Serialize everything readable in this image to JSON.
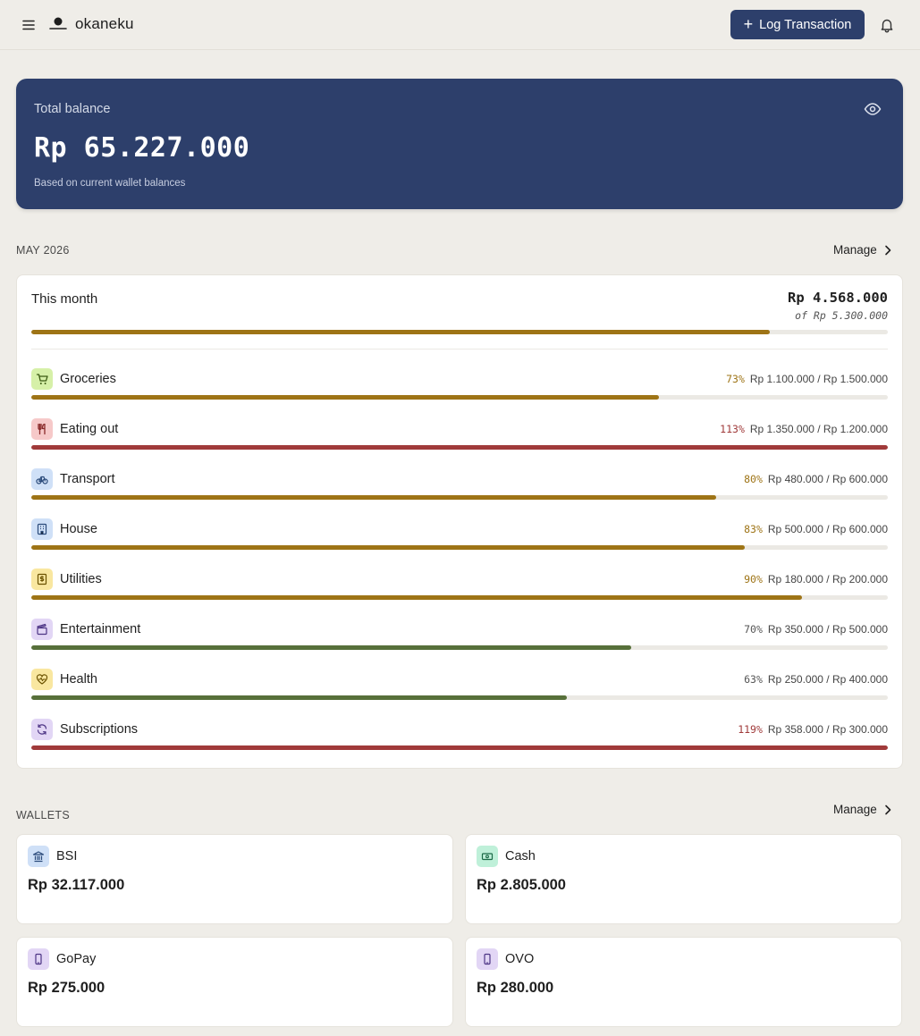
{
  "header": {
    "brand": "okaneku",
    "log_button": "Log Transaction",
    "icons": {
      "menu": "hamburger-icon",
      "logo": "logo-mark-icon",
      "notification": "bell-icon"
    }
  },
  "balance": {
    "label": "Total balance",
    "value": "Rp 65.227.000",
    "note": "Based on current wallet balances",
    "toggle_icon": "eye-icon"
  },
  "budget": {
    "section_title": "MAY 2026",
    "manage_label": "Manage",
    "this_month_label": "This month",
    "spent": "Rp 4.568.000",
    "limit": "of Rp 5.300.000",
    "progress": 0.862,
    "colors": {
      "warn": "#9e7416",
      "over": "#a03a3a",
      "ok": "#57703a",
      "track": "#ebe9e4"
    },
    "categories": [
      {
        "name": "Groceries",
        "percent": "73%",
        "amount": "Rp 1.100.000 / Rp 1.500.000",
        "progress": 0.733,
        "status": "warn",
        "icon": "cart-icon",
        "icon_bg": "#d6f0a8"
      },
      {
        "name": "Eating out",
        "percent": "113%",
        "amount": "Rp 1.350.000 / Rp 1.200.000",
        "progress": 1.0,
        "status": "over",
        "icon": "utensils-icon",
        "icon_bg": "#f6c9c9"
      },
      {
        "name": "Transport",
        "percent": "80%",
        "amount": "Rp 480.000 / Rp 600.000",
        "progress": 0.8,
        "status": "warn",
        "icon": "bicycle-icon",
        "icon_bg": "#cfe0f7"
      },
      {
        "name": "House",
        "percent": "83%",
        "amount": "Rp 500.000 / Rp 600.000",
        "progress": 0.833,
        "status": "warn",
        "icon": "building-icon",
        "icon_bg": "#cfe0f7"
      },
      {
        "name": "Utilities",
        "percent": "90%",
        "amount": "Rp 180.000 / Rp 200.000",
        "progress": 0.9,
        "status": "warn",
        "icon": "receipt-icon",
        "icon_bg": "#f9e7a0"
      },
      {
        "name": "Entertainment",
        "percent": "70%",
        "amount": "Rp 350.000 / Rp 500.000",
        "progress": 0.7,
        "status": "ok",
        "icon": "clapper-icon",
        "icon_bg": "#e2d6f5"
      },
      {
        "name": "Health",
        "percent": "63%",
        "amount": "Rp 250.000 / Rp 400.000",
        "progress": 0.625,
        "status": "ok",
        "icon": "heart-pulse-icon",
        "icon_bg": "#f9e7a0"
      },
      {
        "name": "Subscriptions",
        "percent": "119%",
        "amount": "Rp 358.000 / Rp 300.000",
        "progress": 1.0,
        "status": "over",
        "icon": "refresh-icon",
        "icon_bg": "#e2d6f5"
      }
    ]
  },
  "wallets": {
    "section_title": "WALLETS",
    "manage_label": "Manage",
    "items": [
      {
        "name": "BSI",
        "balance": "Rp 32.117.000",
        "icon": "bank-icon",
        "icon_bg": "#cfe0f7"
      },
      {
        "name": "Cash",
        "balance": "Rp 2.805.000",
        "icon": "banknote-icon",
        "icon_bg": "#bff0d9"
      },
      {
        "name": "GoPay",
        "balance": "Rp 275.000",
        "icon": "phone-icon",
        "icon_bg": "#e2d6f5"
      },
      {
        "name": "OVO",
        "balance": "Rp 280.000",
        "icon": "phone-icon",
        "icon_bg": "#e2d6f5"
      }
    ]
  }
}
